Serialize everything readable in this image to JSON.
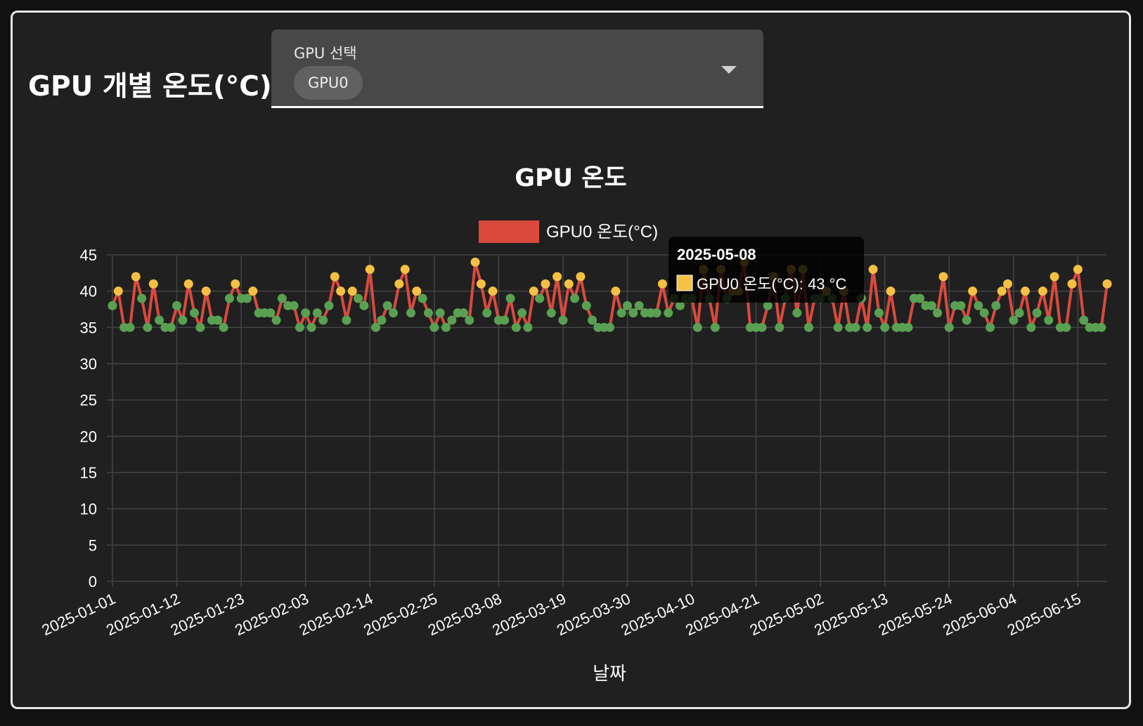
{
  "page_title": "GPU 개별 온도(°C)",
  "gpu_select": {
    "label": "GPU 선택",
    "selected": "GPU0"
  },
  "colors": {
    "line": "#d94a3d",
    "point_high": "#f5c043",
    "point_normal": "#5aa052",
    "grid": "#444444",
    "text": "#ffffff"
  },
  "tooltip": {
    "date": "2025-05-08",
    "text": "GPU0 온도(°C): 43 °C"
  },
  "chart_data": {
    "type": "line",
    "title": "GPU 온도",
    "xlabel": "날짜",
    "ylabel": "",
    "ylim": [
      0,
      45
    ],
    "yticks": [
      0,
      5,
      10,
      15,
      20,
      25,
      30,
      35,
      40,
      45
    ],
    "grid": true,
    "legend_position": "top-center",
    "x_tick_labels": [
      "2025-01-01",
      "2025-01-12",
      "2025-01-23",
      "2025-02-03",
      "2025-02-14",
      "2025-02-25",
      "2025-03-08",
      "2025-03-19",
      "2025-03-30",
      "2025-04-10",
      "2025-04-21",
      "2025-05-02",
      "2025-05-13",
      "2025-05-24",
      "2025-06-04",
      "2025-06-15"
    ],
    "x_start": "2025-01-01",
    "x_end": "2025-06-15",
    "series": [
      {
        "name": "GPU0 온도(°C)",
        "values": [
          38,
          40,
          35,
          35,
          42,
          39,
          35,
          41,
          36,
          35,
          35,
          38,
          36,
          41,
          37,
          35,
          40,
          36,
          36,
          35,
          39,
          41,
          39,
          39,
          40,
          37,
          37,
          37,
          36,
          39,
          38,
          38,
          35,
          37,
          35,
          37,
          36,
          38,
          42,
          40,
          36,
          40,
          39,
          38,
          43,
          35,
          36,
          38,
          37,
          41,
          43,
          37,
          40,
          39,
          37,
          35,
          37,
          35,
          36,
          37,
          37,
          36,
          44,
          41,
          37,
          40,
          36,
          36,
          39,
          35,
          37,
          35,
          40,
          39,
          41,
          37,
          42,
          36,
          41,
          39,
          42,
          38,
          36,
          35,
          35,
          35,
          40,
          37,
          38,
          37,
          38,
          37,
          37,
          37,
          41,
          37,
          39,
          38,
          39,
          39,
          35,
          43,
          39,
          35,
          43,
          39,
          40,
          40,
          44,
          35,
          35,
          35,
          38,
          42,
          35,
          39,
          43,
          37,
          43,
          35,
          39,
          39,
          40,
          39,
          35,
          40,
          35,
          35,
          39,
          35,
          43,
          37,
          35,
          40,
          35,
          35,
          35,
          39,
          39,
          38,
          38,
          37,
          42,
          35,
          38,
          38,
          36,
          40,
          38,
          37,
          35,
          38,
          40,
          41,
          36,
          37,
          40,
          35,
          37,
          40,
          36,
          42,
          35,
          35,
          41,
          43,
          36,
          35,
          35,
          35,
          41
        ]
      }
    ]
  }
}
